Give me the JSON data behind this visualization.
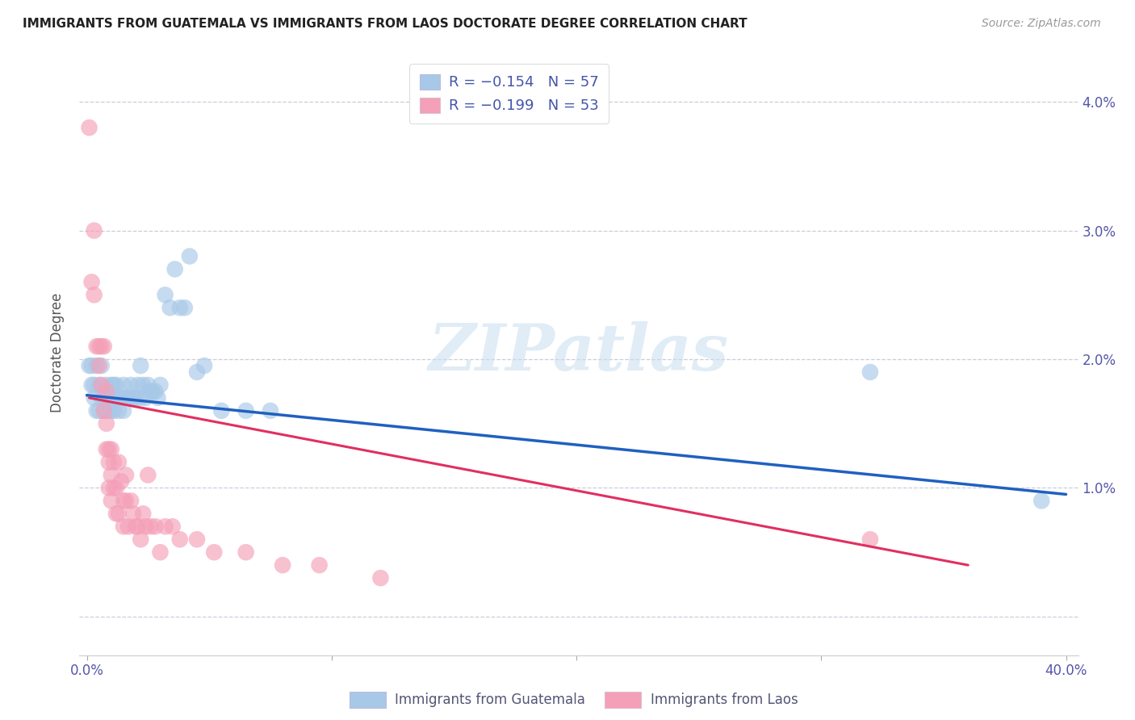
{
  "title": "IMMIGRANTS FROM GUATEMALA VS IMMIGRANTS FROM LAOS DOCTORATE DEGREE CORRELATION CHART",
  "source": "Source: ZipAtlas.com",
  "ylabel": "Doctorate Degree",
  "color_guatemala": "#a8c8e8",
  "color_laos": "#f4a0b8",
  "color_line_guatemala": "#2060c0",
  "color_line_laos": "#e03060",
  "watermark": "ZIPatlas",
  "xlim": [
    -0.003,
    0.405
  ],
  "ylim": [
    -0.003,
    0.044
  ],
  "guatemala_scatter": [
    [
      0.001,
      0.0195
    ],
    [
      0.002,
      0.0195
    ],
    [
      0.002,
      0.018
    ],
    [
      0.003,
      0.018
    ],
    [
      0.003,
      0.017
    ],
    [
      0.004,
      0.0195
    ],
    [
      0.004,
      0.016
    ],
    [
      0.005,
      0.018
    ],
    [
      0.005,
      0.016
    ],
    [
      0.006,
      0.0195
    ],
    [
      0.006,
      0.017
    ],
    [
      0.007,
      0.017
    ],
    [
      0.007,
      0.016
    ],
    [
      0.008,
      0.018
    ],
    [
      0.008,
      0.016
    ],
    [
      0.009,
      0.017
    ],
    [
      0.009,
      0.016
    ],
    [
      0.01,
      0.018
    ],
    [
      0.01,
      0.016
    ],
    [
      0.011,
      0.018
    ],
    [
      0.011,
      0.016
    ],
    [
      0.012,
      0.018
    ],
    [
      0.012,
      0.017
    ],
    [
      0.013,
      0.017
    ],
    [
      0.013,
      0.016
    ],
    [
      0.014,
      0.017
    ],
    [
      0.015,
      0.018
    ],
    [
      0.015,
      0.016
    ],
    [
      0.016,
      0.017
    ],
    [
      0.017,
      0.017
    ],
    [
      0.018,
      0.018
    ],
    [
      0.019,
      0.017
    ],
    [
      0.02,
      0.017
    ],
    [
      0.021,
      0.018
    ],
    [
      0.022,
      0.0195
    ],
    [
      0.022,
      0.017
    ],
    [
      0.023,
      0.018
    ],
    [
      0.024,
      0.017
    ],
    [
      0.025,
      0.018
    ],
    [
      0.026,
      0.0175
    ],
    [
      0.027,
      0.0175
    ],
    [
      0.028,
      0.0175
    ],
    [
      0.029,
      0.017
    ],
    [
      0.03,
      0.018
    ],
    [
      0.032,
      0.025
    ],
    [
      0.034,
      0.024
    ],
    [
      0.036,
      0.027
    ],
    [
      0.038,
      0.024
    ],
    [
      0.04,
      0.024
    ],
    [
      0.042,
      0.028
    ],
    [
      0.045,
      0.019
    ],
    [
      0.048,
      0.0195
    ],
    [
      0.055,
      0.016
    ],
    [
      0.065,
      0.016
    ],
    [
      0.075,
      0.016
    ],
    [
      0.32,
      0.019
    ],
    [
      0.39,
      0.009
    ]
  ],
  "laos_scatter": [
    [
      0.001,
      0.038
    ],
    [
      0.002,
      0.026
    ],
    [
      0.003,
      0.025
    ],
    [
      0.003,
      0.03
    ],
    [
      0.004,
      0.021
    ],
    [
      0.005,
      0.021
    ],
    [
      0.005,
      0.0195
    ],
    [
      0.006,
      0.021
    ],
    [
      0.006,
      0.018
    ],
    [
      0.007,
      0.021
    ],
    [
      0.007,
      0.016
    ],
    [
      0.008,
      0.0175
    ],
    [
      0.008,
      0.015
    ],
    [
      0.008,
      0.013
    ],
    [
      0.009,
      0.013
    ],
    [
      0.009,
      0.012
    ],
    [
      0.009,
      0.01
    ],
    [
      0.01,
      0.013
    ],
    [
      0.01,
      0.011
    ],
    [
      0.01,
      0.009
    ],
    [
      0.011,
      0.012
    ],
    [
      0.011,
      0.01
    ],
    [
      0.012,
      0.01
    ],
    [
      0.012,
      0.008
    ],
    [
      0.013,
      0.012
    ],
    [
      0.013,
      0.008
    ],
    [
      0.014,
      0.0105
    ],
    [
      0.015,
      0.009
    ],
    [
      0.015,
      0.007
    ],
    [
      0.016,
      0.011
    ],
    [
      0.016,
      0.009
    ],
    [
      0.017,
      0.007
    ],
    [
      0.018,
      0.009
    ],
    [
      0.019,
      0.008
    ],
    [
      0.02,
      0.007
    ],
    [
      0.021,
      0.007
    ],
    [
      0.022,
      0.006
    ],
    [
      0.023,
      0.008
    ],
    [
      0.024,
      0.007
    ],
    [
      0.025,
      0.011
    ],
    [
      0.026,
      0.007
    ],
    [
      0.028,
      0.007
    ],
    [
      0.03,
      0.005
    ],
    [
      0.032,
      0.007
    ],
    [
      0.035,
      0.007
    ],
    [
      0.038,
      0.006
    ],
    [
      0.045,
      0.006
    ],
    [
      0.052,
      0.005
    ],
    [
      0.065,
      0.005
    ],
    [
      0.08,
      0.004
    ],
    [
      0.095,
      0.004
    ],
    [
      0.12,
      0.003
    ],
    [
      0.32,
      0.006
    ]
  ],
  "guatemala_line_x": [
    0.0,
    0.4
  ],
  "guatemala_line_y": [
    0.0172,
    0.0095
  ],
  "laos_line_x": [
    0.001,
    0.36
  ],
  "laos_line_y": [
    0.017,
    0.004
  ]
}
